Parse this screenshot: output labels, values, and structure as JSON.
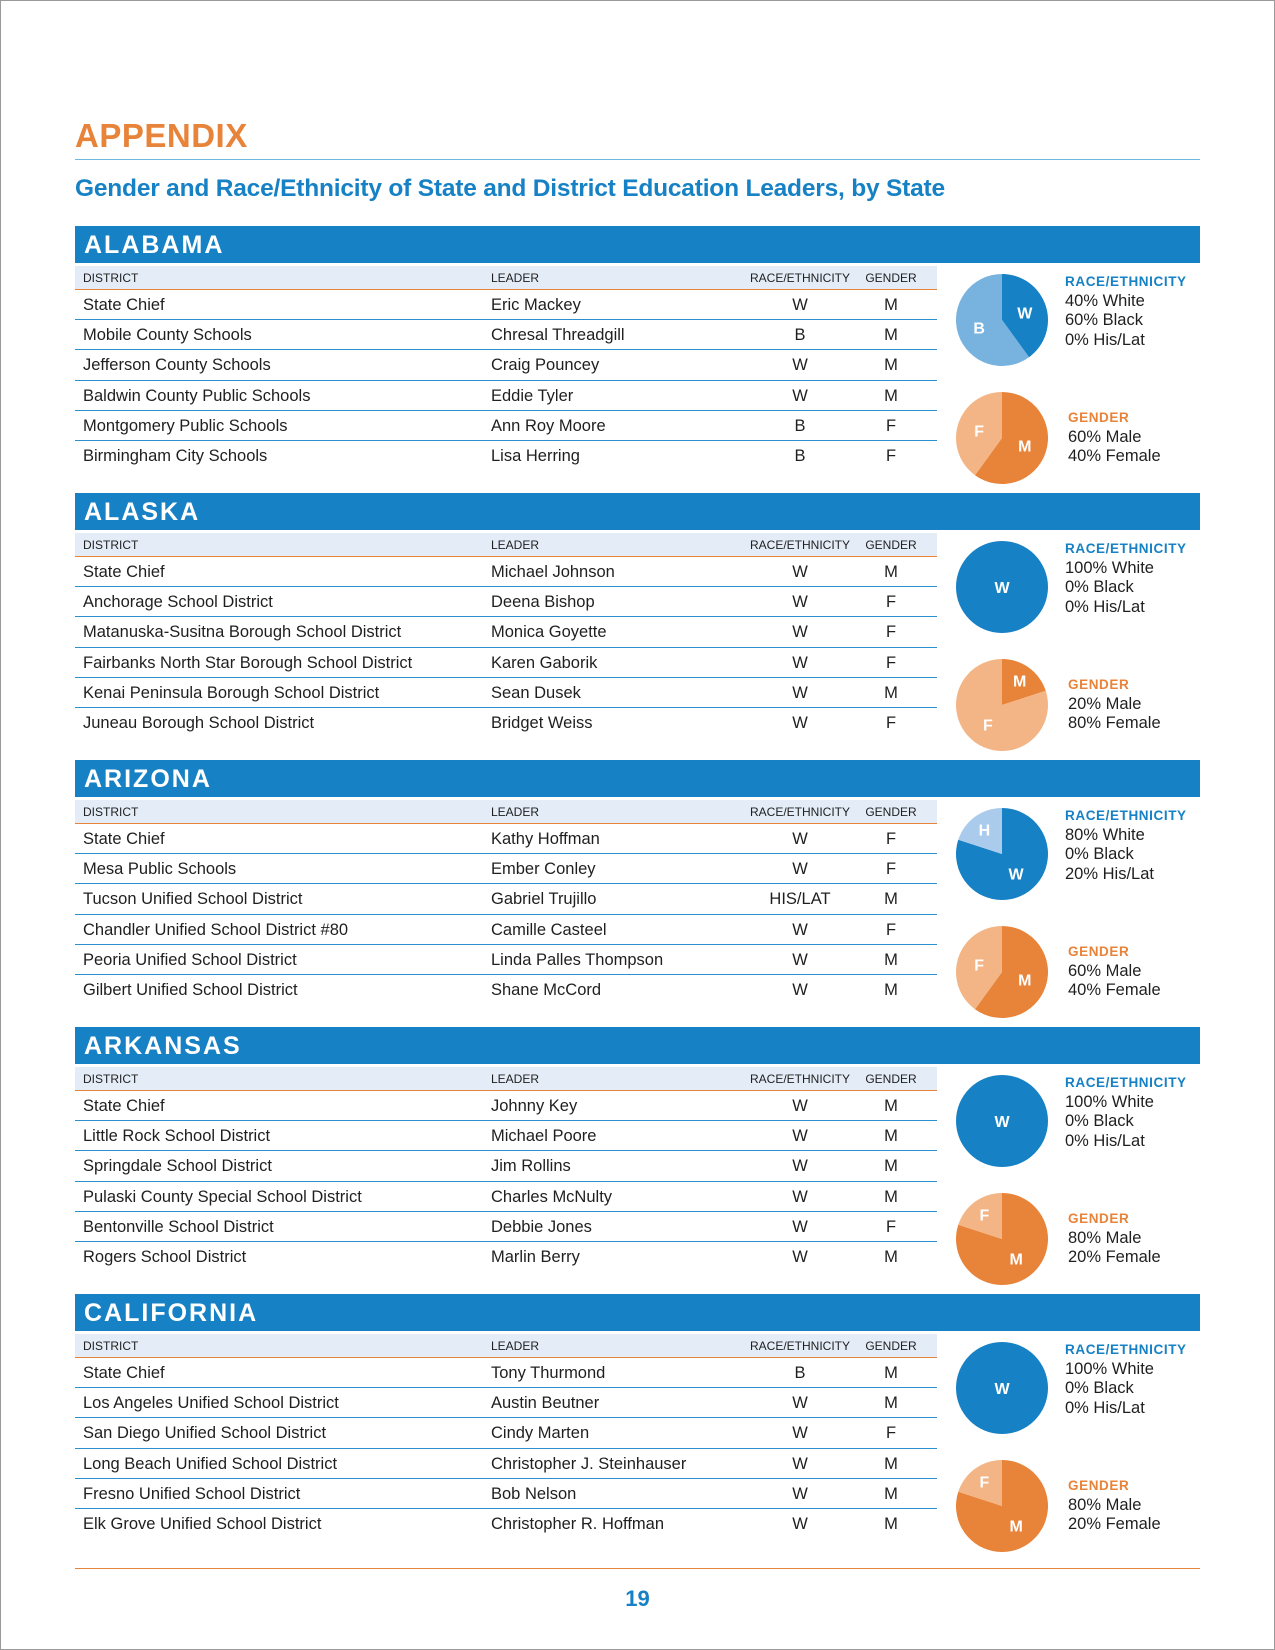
{
  "header": {
    "title": "APPENDIX",
    "subtitle": "Gender and Race/Ethnicity of State and District Education Leaders, by State"
  },
  "columns": {
    "district": "DISTRICT",
    "leader": "LEADER",
    "race": "RACE/ETHNICITY",
    "gender": "GENDER"
  },
  "colors": {
    "white": "#1681c4",
    "black": "#78b2df",
    "hislat": "#aacbeb",
    "male": "#e8833a",
    "female": "#f3b585",
    "banner": "#1681c4",
    "title_orange": "#e8833a"
  },
  "states": [
    {
      "name": "ALABAMA",
      "rows": [
        {
          "district": "State Chief",
          "leader": "Eric Mackey",
          "race": "W",
          "gender": "M"
        },
        {
          "district": "Mobile County Schools",
          "leader": "Chresal Threadgill",
          "race": "B",
          "gender": "M"
        },
        {
          "district": "Jefferson County Schools",
          "leader": "Craig Pouncey",
          "race": "W",
          "gender": "M"
        },
        {
          "district": "Baldwin County Public Schools",
          "leader": "Eddie Tyler",
          "race": "W",
          "gender": "M"
        },
        {
          "district": "Montgomery Public Schools",
          "leader": "Ann Roy Moore",
          "race": "B",
          "gender": "F"
        },
        {
          "district": "Birmingham City Schools",
          "leader": "Lisa Herring",
          "race": "B",
          "gender": "F"
        }
      ],
      "race_summary": {
        "title": "RACE/ETHNICITY",
        "white": "40% White",
        "black": "60% Black",
        "hislat": "0% His/Lat"
      },
      "gender_summary": {
        "title": "GENDER",
        "male": "60% Male",
        "female": "40% Female"
      },
      "race_chart": {
        "type": "pie",
        "slices": [
          {
            "label": "W",
            "value": 40,
            "color": "#1681c4"
          },
          {
            "label": "B",
            "value": 60,
            "color": "#78b2df"
          },
          {
            "label": "H",
            "value": 0,
            "color": "#aacbeb"
          }
        ]
      },
      "gender_chart": {
        "type": "pie",
        "slices": [
          {
            "label": "M",
            "value": 60,
            "color": "#e8833a"
          },
          {
            "label": "F",
            "value": 40,
            "color": "#f3b585"
          }
        ]
      }
    },
    {
      "name": "ALASKA",
      "rows": [
        {
          "district": "State Chief",
          "leader": "Michael Johnson",
          "race": "W",
          "gender": "M"
        },
        {
          "district": "Anchorage School District",
          "leader": "Deena Bishop",
          "race": "W",
          "gender": "F"
        },
        {
          "district": "Matanuska-Susitna Borough School District",
          "leader": "Monica Goyette",
          "race": "W",
          "gender": "F"
        },
        {
          "district": "Fairbanks North Star Borough School District",
          "leader": "Karen Gaborik",
          "race": "W",
          "gender": "F"
        },
        {
          "district": "Kenai Peninsula Borough School District",
          "leader": "Sean Dusek",
          "race": "W",
          "gender": "M"
        },
        {
          "district": "Juneau Borough School District",
          "leader": "Bridget Weiss",
          "race": "W",
          "gender": "F"
        }
      ],
      "race_summary": {
        "title": "RACE/ETHNICITY",
        "white": "100% White",
        "black": "0% Black",
        "hislat": "0% His/Lat"
      },
      "gender_summary": {
        "title": "GENDER",
        "male": "20% Male",
        "female": "80% Female"
      },
      "race_chart": {
        "type": "pie",
        "slices": [
          {
            "label": "W",
            "value": 100,
            "color": "#1681c4"
          },
          {
            "label": "B",
            "value": 0,
            "color": "#78b2df"
          },
          {
            "label": "H",
            "value": 0,
            "color": "#aacbeb"
          }
        ]
      },
      "gender_chart": {
        "type": "pie",
        "slices": [
          {
            "label": "M",
            "value": 20,
            "color": "#e8833a"
          },
          {
            "label": "F",
            "value": 80,
            "color": "#f3b585"
          }
        ]
      }
    },
    {
      "name": "ARIZONA",
      "rows": [
        {
          "district": "State Chief",
          "leader": "Kathy Hoffman",
          "race": "W",
          "gender": "F"
        },
        {
          "district": "Mesa Public Schools",
          "leader": "Ember Conley",
          "race": "W",
          "gender": "F"
        },
        {
          "district": "Tucson Unified School District",
          "leader": "Gabriel Trujillo",
          "race": "HIS/LAT",
          "gender": "M"
        },
        {
          "district": "Chandler Unified School District #80",
          "leader": "Camille Casteel",
          "race": "W",
          "gender": "F"
        },
        {
          "district": "Peoria Unified School District",
          "leader": "Linda Palles Thompson",
          "race": "W",
          "gender": "M"
        },
        {
          "district": "Gilbert Unified School District",
          "leader": "Shane McCord",
          "race": "W",
          "gender": "M"
        }
      ],
      "race_summary": {
        "title": "RACE/ETHNICITY",
        "white": "80% White",
        "black": "0% Black",
        "hislat": "20% His/Lat"
      },
      "gender_summary": {
        "title": "GENDER",
        "male": "60% Male",
        "female": "40% Female"
      },
      "race_chart": {
        "type": "pie",
        "slices": [
          {
            "label": "W",
            "value": 80,
            "color": "#1681c4"
          },
          {
            "label": "B",
            "value": 0,
            "color": "#78b2df"
          },
          {
            "label": "H",
            "value": 20,
            "color": "#aacbeb"
          }
        ]
      },
      "gender_chart": {
        "type": "pie",
        "slices": [
          {
            "label": "M",
            "value": 60,
            "color": "#e8833a"
          },
          {
            "label": "F",
            "value": 40,
            "color": "#f3b585"
          }
        ]
      }
    },
    {
      "name": "ARKANSAS",
      "rows": [
        {
          "district": "State Chief",
          "leader": "Johnny Key",
          "race": "W",
          "gender": "M"
        },
        {
          "district": "Little Rock School District",
          "leader": "Michael Poore",
          "race": "W",
          "gender": "M"
        },
        {
          "district": "Springdale School District",
          "leader": "Jim Rollins",
          "race": "W",
          "gender": "M"
        },
        {
          "district": "Pulaski County Special School District",
          "leader": "Charles McNulty",
          "race": "W",
          "gender": "M"
        },
        {
          "district": "Bentonville School District",
          "leader": "Debbie Jones",
          "race": "W",
          "gender": "F"
        },
        {
          "district": "Rogers School District",
          "leader": "Marlin Berry",
          "race": "W",
          "gender": "M"
        }
      ],
      "race_summary": {
        "title": "RACE/ETHNICITY",
        "white": "100% White",
        "black": "0% Black",
        "hislat": "0% His/Lat"
      },
      "gender_summary": {
        "title": "GENDER",
        "male": "80% Male",
        "female": "20% Female"
      },
      "race_chart": {
        "type": "pie",
        "slices": [
          {
            "label": "W",
            "value": 100,
            "color": "#1681c4"
          },
          {
            "label": "B",
            "value": 0,
            "color": "#78b2df"
          },
          {
            "label": "H",
            "value": 0,
            "color": "#aacbeb"
          }
        ]
      },
      "gender_chart": {
        "type": "pie",
        "slices": [
          {
            "label": "M",
            "value": 80,
            "color": "#e8833a"
          },
          {
            "label": "F",
            "value": 20,
            "color": "#f3b585"
          }
        ]
      }
    },
    {
      "name": "CALIFORNIA",
      "rows": [
        {
          "district": "State Chief",
          "leader": "Tony Thurmond",
          "race": "B",
          "gender": "M"
        },
        {
          "district": "Los Angeles Unified School District",
          "leader": "Austin Beutner",
          "race": "W",
          "gender": "M"
        },
        {
          "district": "San Diego Unified School District",
          "leader": "Cindy Marten",
          "race": "W",
          "gender": "F"
        },
        {
          "district": "Long Beach Unified School District",
          "leader": "Christopher J. Steinhauser",
          "race": "W",
          "gender": "M"
        },
        {
          "district": "Fresno Unified School District",
          "leader": "Bob Nelson",
          "race": "W",
          "gender": "M"
        },
        {
          "district": "Elk Grove Unified School District",
          "leader": "Christopher R. Hoffman",
          "race": "W",
          "gender": "M"
        }
      ],
      "race_summary": {
        "title": "RACE/ETHNICITY",
        "white": "100% White",
        "black": "0% Black",
        "hislat": "0% His/Lat"
      },
      "gender_summary": {
        "title": "GENDER",
        "male": "80% Male",
        "female": "20% Female"
      },
      "race_chart": {
        "type": "pie",
        "slices": [
          {
            "label": "W",
            "value": 100,
            "color": "#1681c4"
          },
          {
            "label": "B",
            "value": 0,
            "color": "#78b2df"
          },
          {
            "label": "H",
            "value": 0,
            "color": "#aacbeb"
          }
        ]
      },
      "gender_chart": {
        "type": "pie",
        "slices": [
          {
            "label": "M",
            "value": 80,
            "color": "#e8833a"
          },
          {
            "label": "F",
            "value": 20,
            "color": "#f3b585"
          }
        ]
      }
    }
  ],
  "footer": {
    "page_number": "19"
  }
}
